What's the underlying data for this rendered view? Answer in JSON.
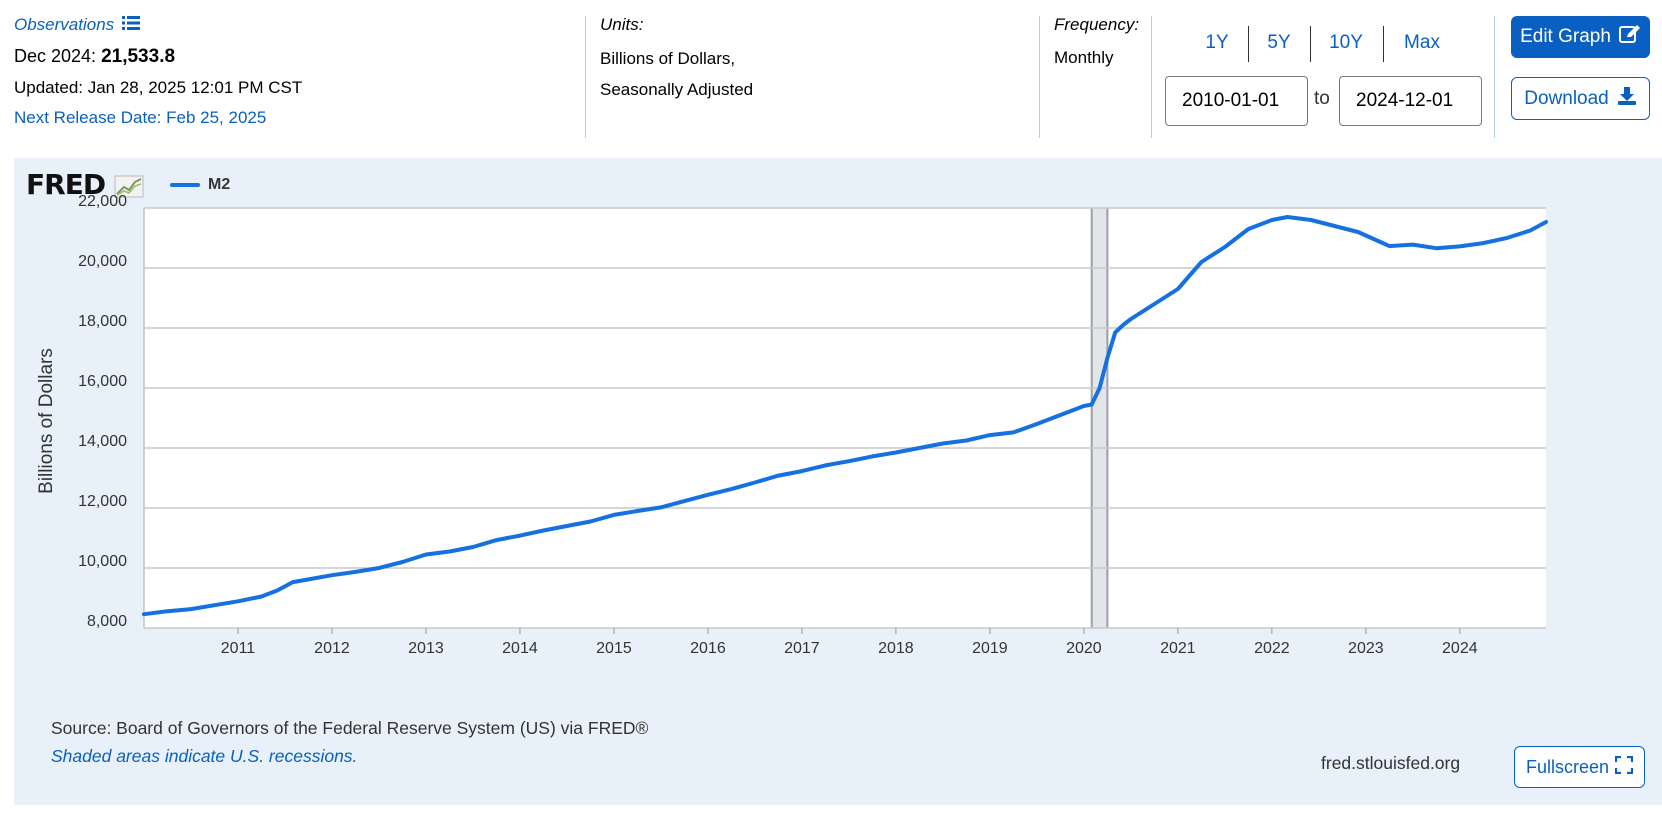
{
  "header": {
    "observations_label": "Observations",
    "obs_date": "Dec 2024:",
    "obs_value": "21,533.8",
    "updated": "Updated: Jan 28, 2025 12:01 PM CST",
    "next_release": "Next Release Date: Feb 25, 2025",
    "units_label": "Units:",
    "units_line1": "Billions of Dollars,",
    "units_line2": "Seasonally Adjusted",
    "frequency_label": "Frequency:",
    "frequency_value": "Monthly",
    "range_buttons": [
      "1Y",
      "5Y",
      "10Y",
      "Max"
    ],
    "date_from": "2010-01-01",
    "to_label": "to",
    "date_to": "2024-12-01",
    "edit_label": "Edit Graph",
    "download_label": "Download"
  },
  "icons": [
    "list-icon",
    "edit-icon",
    "download-icon",
    "fullscreen-icon",
    "fred-chart-icon"
  ],
  "colors": {
    "accent": "#0a60c2",
    "series": "#1570e0",
    "panel_bg": "#e8f1f9",
    "recession": "#e1e6ea"
  },
  "chart_data": {
    "type": "line",
    "brand": "FRED",
    "ylabel": "Billions of Dollars",
    "ylim": [
      8000,
      22000
    ],
    "yticks": [
      "8,000",
      "10,000",
      "12,000",
      "14,000",
      "16,000",
      "18,000",
      "20,000",
      "22,000"
    ],
    "ytick_values": [
      8000,
      10000,
      12000,
      14000,
      16000,
      18000,
      20000,
      22000
    ],
    "xlim": [
      "2010-01-01",
      "2024-12-01"
    ],
    "xticks": [
      "2011",
      "2012",
      "2013",
      "2014",
      "2015",
      "2016",
      "2017",
      "2018",
      "2019",
      "2020",
      "2021",
      "2022",
      "2023",
      "2024"
    ],
    "grid": true,
    "legend": "top-left",
    "recessions": [
      {
        "start": "2020-02-01",
        "end": "2020-04-01"
      }
    ],
    "series": [
      {
        "name": "M2",
        "points": [
          [
            "2010-01",
            8460
          ],
          [
            "2010-04",
            8560
          ],
          [
            "2010-07",
            8630
          ],
          [
            "2010-10",
            8760
          ],
          [
            "2011-01",
            8890
          ],
          [
            "2011-04",
            9050
          ],
          [
            "2011-06",
            9250
          ],
          [
            "2011-08",
            9530
          ],
          [
            "2011-10",
            9620
          ],
          [
            "2012-01",
            9760
          ],
          [
            "2012-04",
            9870
          ],
          [
            "2012-07",
            10000
          ],
          [
            "2012-10",
            10200
          ],
          [
            "2013-01",
            10450
          ],
          [
            "2013-04",
            10550
          ],
          [
            "2013-07",
            10700
          ],
          [
            "2013-10",
            10930
          ],
          [
            "2014-01",
            11080
          ],
          [
            "2014-04",
            11250
          ],
          [
            "2014-07",
            11400
          ],
          [
            "2014-10",
            11550
          ],
          [
            "2015-01",
            11770
          ],
          [
            "2015-04",
            11900
          ],
          [
            "2015-07",
            12020
          ],
          [
            "2015-10",
            12230
          ],
          [
            "2016-01",
            12440
          ],
          [
            "2016-04",
            12630
          ],
          [
            "2016-07",
            12850
          ],
          [
            "2016-10",
            13080
          ],
          [
            "2017-01",
            13230
          ],
          [
            "2017-04",
            13420
          ],
          [
            "2017-07",
            13560
          ],
          [
            "2017-10",
            13720
          ],
          [
            "2018-01",
            13850
          ],
          [
            "2018-04",
            14000
          ],
          [
            "2018-07",
            14150
          ],
          [
            "2018-10",
            14250
          ],
          [
            "2019-01",
            14430
          ],
          [
            "2019-04",
            14520
          ],
          [
            "2019-07",
            14800
          ],
          [
            "2019-10",
            15100
          ],
          [
            "2020-01",
            15400
          ],
          [
            "2020-02",
            15450
          ],
          [
            "2020-03",
            16000
          ],
          [
            "2020-04",
            17000
          ],
          [
            "2020-05",
            17850
          ],
          [
            "2020-06",
            18100
          ],
          [
            "2020-07",
            18300
          ],
          [
            "2020-10",
            18800
          ],
          [
            "2021-01",
            19300
          ],
          [
            "2021-04",
            20200
          ],
          [
            "2021-07",
            20700
          ],
          [
            "2021-10",
            21300
          ],
          [
            "2022-01",
            21600
          ],
          [
            "2022-03",
            21700
          ],
          [
            "2022-06",
            21600
          ],
          [
            "2022-09",
            21400
          ],
          [
            "2022-12",
            21200
          ],
          [
            "2023-03",
            20850
          ],
          [
            "2023-04",
            20730
          ],
          [
            "2023-07",
            20780
          ],
          [
            "2023-10",
            20660
          ],
          [
            "2024-01",
            20720
          ],
          [
            "2024-04",
            20830
          ],
          [
            "2024-07",
            21000
          ],
          [
            "2024-10",
            21250
          ],
          [
            "2024-12",
            21533.8
          ]
        ]
      }
    ]
  },
  "footer": {
    "source": "Source: Board of Governors of the Federal Reserve System (US) via FRED®",
    "shaded_note": "Shaded areas indicate U.S. recessions.",
    "site": "fred.stlouisfed.org",
    "fullscreen_label": "Fullscreen"
  }
}
